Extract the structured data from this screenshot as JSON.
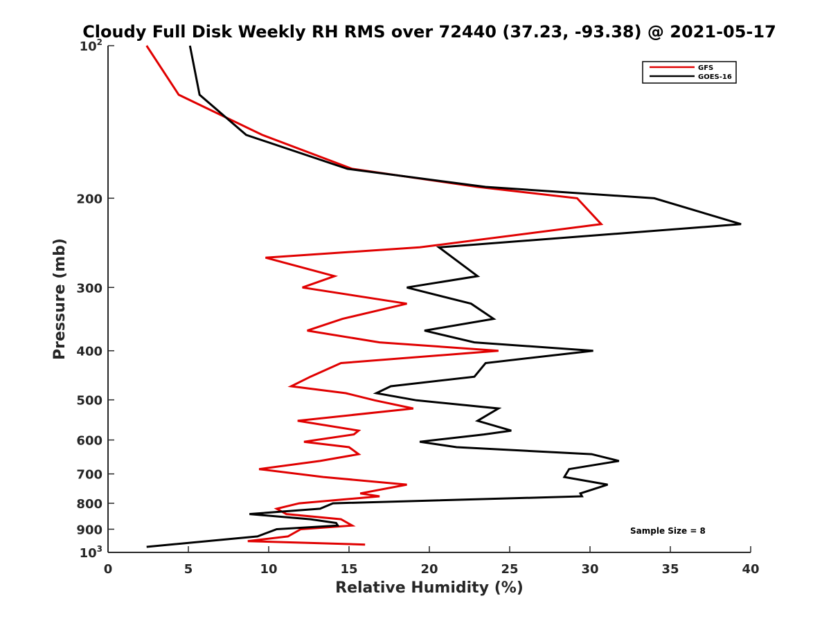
{
  "chart_data": {
    "type": "line",
    "title": "Cloudy Full Disk Weekly RH RMS over 72440 (37.23, -93.38) @ 2021-05-17",
    "xlabel": "Relative Humidity (%)",
    "ylabel": "Pressure (mb)",
    "xlim": [
      0,
      40
    ],
    "ylim": [
      100,
      1000
    ],
    "yscale": "log",
    "yreversed": true,
    "xticks": [
      0,
      5,
      10,
      15,
      20,
      25,
      30,
      35,
      40
    ],
    "yticks": [
      {
        "value": 100,
        "base": "10",
        "exp": "2"
      },
      {
        "value": 200,
        "label": "200"
      },
      {
        "value": 300,
        "label": "300"
      },
      {
        "value": 400,
        "label": "400"
      },
      {
        "value": 500,
        "label": "500"
      },
      {
        "value": 600,
        "label": "600"
      },
      {
        "value": 700,
        "label": "700"
      },
      {
        "value": 800,
        "label": "800"
      },
      {
        "value": 900,
        "label": "900"
      },
      {
        "value": 1000,
        "base": "10",
        "exp": "3"
      }
    ],
    "grid": false,
    "legend_position": "top-right",
    "annotation": "Sample Size = 8",
    "series": [
      {
        "name": "GFS",
        "color": "#e00000",
        "points": [
          [
            2.4,
            100
          ],
          [
            4.4,
            125
          ],
          [
            9.6,
            150
          ],
          [
            15.2,
            175
          ],
          [
            23.0,
            190
          ],
          [
            29.2,
            200
          ],
          [
            30.7,
            225
          ],
          [
            19.4,
            250
          ],
          [
            9.8,
            262
          ],
          [
            14.1,
            285
          ],
          [
            12.1,
            300
          ],
          [
            18.6,
            323
          ],
          [
            14.6,
            346
          ],
          [
            12.4,
            365
          ],
          [
            16.9,
            385
          ],
          [
            24.3,
            400
          ],
          [
            14.5,
            423
          ],
          [
            12.6,
            450
          ],
          [
            11.4,
            470
          ],
          [
            14.8,
            485
          ],
          [
            16.6,
            501
          ],
          [
            19.0,
            520
          ],
          [
            11.8,
            550
          ],
          [
            15.6,
            575
          ],
          [
            15.3,
            585
          ],
          [
            12.2,
            605
          ],
          [
            15.0,
            620
          ],
          [
            15.6,
            640
          ],
          [
            13.2,
            660
          ],
          [
            9.4,
            685
          ],
          [
            13.4,
            710
          ],
          [
            18.6,
            735
          ],
          [
            15.7,
            765
          ],
          [
            16.9,
            775
          ],
          [
            11.9,
            800
          ],
          [
            10.5,
            820
          ],
          [
            11.1,
            840
          ],
          [
            14.5,
            860
          ],
          [
            15.2,
            885
          ],
          [
            12.0,
            900
          ],
          [
            11.2,
            930
          ],
          [
            8.7,
            950
          ],
          [
            16.0,
            965
          ]
        ]
      },
      {
        "name": "GOES-16",
        "color": "#000000",
        "points": [
          [
            5.1,
            100
          ],
          [
            5.7,
            125
          ],
          [
            8.6,
            150
          ],
          [
            14.9,
            175
          ],
          [
            23.5,
            190
          ],
          [
            34.0,
            200
          ],
          [
            39.4,
            225
          ],
          [
            20.6,
            250
          ],
          [
            23.0,
            285
          ],
          [
            18.6,
            300
          ],
          [
            22.6,
            323
          ],
          [
            24.0,
            346
          ],
          [
            19.7,
            365
          ],
          [
            22.8,
            385
          ],
          [
            30.2,
            400
          ],
          [
            23.5,
            423
          ],
          [
            22.8,
            450
          ],
          [
            17.6,
            470
          ],
          [
            16.7,
            485
          ],
          [
            19.2,
            501
          ],
          [
            24.3,
            520
          ],
          [
            23.0,
            550
          ],
          [
            25.1,
            575
          ],
          [
            23.4,
            585
          ],
          [
            19.4,
            605
          ],
          [
            21.7,
            620
          ],
          [
            30.1,
            640
          ],
          [
            31.8,
            660
          ],
          [
            28.7,
            685
          ],
          [
            28.4,
            710
          ],
          [
            31.1,
            735
          ],
          [
            29.4,
            765
          ],
          [
            29.5,
            775
          ],
          [
            14.0,
            800
          ],
          [
            13.2,
            820
          ],
          [
            8.8,
            840
          ],
          [
            12.6,
            860
          ],
          [
            14.2,
            875
          ],
          [
            14.3,
            885
          ],
          [
            10.5,
            900
          ],
          [
            9.3,
            930
          ],
          [
            2.4,
            975
          ]
        ]
      }
    ]
  }
}
